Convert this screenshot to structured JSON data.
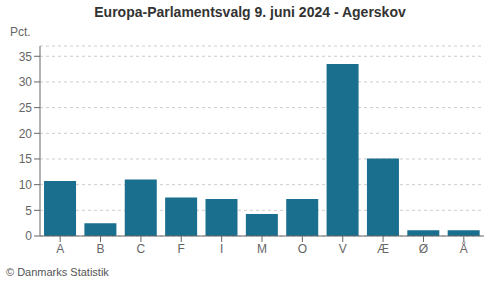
{
  "chart_data": {
    "type": "bar",
    "title": "Europa-Parlamentsvalg 9. juni 2024 - Agerskov",
    "ylabel": "Pct.",
    "annotations": [
      "© Danmarks Statistik"
    ],
    "categories": [
      "A",
      "B",
      "C",
      "F",
      "I",
      "M",
      "O",
      "V",
      "Æ",
      "Ø",
      "Å"
    ],
    "values": [
      10.7,
      2.5,
      11.0,
      7.5,
      7.2,
      4.3,
      7.2,
      33.5,
      15.1,
      1.1,
      1.1
    ],
    "color": "#1a6e8e",
    "ylim": [
      0,
      37
    ],
    "yticks": [
      0,
      5,
      10,
      15,
      20,
      25,
      30,
      35
    ],
    "grid": true
  }
}
